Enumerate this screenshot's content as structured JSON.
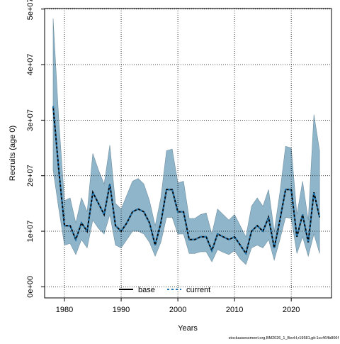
{
  "chart_data": {
    "type": "line",
    "x_label": "Years",
    "y_label": "Recruits (age 0)",
    "footer": "stockassessment.org,BM2026_1_BevH,r19581,git:1cc464b806f",
    "x": [
      1978,
      1979,
      1980,
      1981,
      1982,
      1983,
      1984,
      1985,
      1986,
      1987,
      1988,
      1989,
      1990,
      1991,
      1992,
      1993,
      1994,
      1995,
      1996,
      1997,
      1998,
      1999,
      2000,
      2001,
      2002,
      2003,
      2004,
      2005,
      2006,
      2007,
      2008,
      2009,
      2010,
      2011,
      2012,
      2013,
      2014,
      2015,
      2016,
      2017,
      2018,
      2019,
      2020,
      2021,
      2022,
      2023,
      2024,
      2025
    ],
    "series": [
      {
        "name": "base",
        "color": "#000000",
        "style": "solid",
        "values": [
          32500000.0,
          21000000.0,
          11000000.0,
          11000000.0,
          8500000.0,
          11500000.0,
          10000000.0,
          17000000.0,
          15000000.0,
          13000000.0,
          18500000.0,
          11000000.0,
          10000000.0,
          11500000.0,
          13500000.0,
          14000000.0,
          13500000.0,
          11500000.0,
          7500000.0,
          11500000.0,
          17500000.0,
          17500000.0,
          13500000.0,
          13500000.0,
          8500000.0,
          8500000.0,
          9000000.0,
          9000000.0,
          6500000.0,
          9500000.0,
          9000000.0,
          8500000.0,
          9000000.0,
          7500000.0,
          6000000.0,
          10000000.0,
          11000000.0,
          10000000.0,
          12500000.0,
          7000000.0,
          12000000.0,
          17500000.0,
          17500000.0,
          9000000.0,
          13000000.0,
          8000000.0,
          17000000.0,
          12500000.0
        ]
      },
      {
        "name": "current",
        "color": "#1f78b4",
        "style": "dashed",
        "values": [
          32500000.0,
          21000000.0,
          11000000.0,
          11000000.0,
          8500000.0,
          11500000.0,
          10000000.0,
          17000000.0,
          15000000.0,
          13000000.0,
          18500000.0,
          11000000.0,
          10000000.0,
          11500000.0,
          13500000.0,
          14000000.0,
          13500000.0,
          11500000.0,
          7500000.0,
          11500000.0,
          17500000.0,
          17500000.0,
          13500000.0,
          13500000.0,
          8500000.0,
          8500000.0,
          9000000.0,
          9000000.0,
          6500000.0,
          9500000.0,
          9000000.0,
          8500000.0,
          9000000.0,
          7500000.0,
          6000000.0,
          10000000.0,
          11000000.0,
          10000000.0,
          12500000.0,
          7000000.0,
          12000000.0,
          17500000.0,
          17500000.0,
          9000000.0,
          13000000.0,
          8000000.0,
          17000000.0,
          12500000.0
        ]
      }
    ],
    "band": {
      "color": "#8fb5ca",
      "upper": [
        48300000.0,
        30000000.0,
        15500000.0,
        16000000.0,
        11500000.0,
        16000000.0,
        13500000.0,
        24000000.0,
        21000000.0,
        18500000.0,
        25500000.0,
        15000000.0,
        14000000.0,
        16500000.0,
        19000000.0,
        19500000.0,
        18500000.0,
        15500000.0,
        11000000.0,
        16000000.0,
        24500000.0,
        24800000.0,
        18700000.0,
        19000000.0,
        12300000.0,
        12300000.0,
        13000000.0,
        13300000.0,
        9500000.0,
        14000000.0,
        13000000.0,
        12000000.0,
        13000000.0,
        11000000.0,
        9000000.0,
        14500000.0,
        16000000.0,
        14500000.0,
        17500000.0,
        10000000.0,
        17000000.0,
        25300000.0,
        25000000.0,
        13000000.0,
        19000000.0,
        12000000.0,
        31000000.0,
        24500000.0
      ],
      "lower": [
        21000000.0,
        14000000.0,
        7500000.0,
        7800000.0,
        5800000.0,
        8500000.0,
        7000000.0,
        12000000.0,
        10500000.0,
        9500000.0,
        13000000.0,
        7500000.0,
        7000000.0,
        8500000.0,
        10000000.0,
        10000000.0,
        9500000.0,
        8000000.0,
        5500000.0,
        8000000.0,
        12500000.0,
        12500000.0,
        9500000.0,
        9500000.0,
        6000000.0,
        6000000.0,
        6300000.0,
        6300000.0,
        4500000.0,
        6700000.0,
        6200000.0,
        5800000.0,
        6500000.0,
        5000000.0,
        4000000.0,
        7000000.0,
        7500000.0,
        7000000.0,
        8500000.0,
        4800000.0,
        8500000.0,
        12500000.0,
        12300000.0,
        6000000.0,
        9000000.0,
        5500000.0,
        9500000.0,
        6000000.0
      ]
    },
    "xlim": [
      1976.5,
      2027.1
    ],
    "xticks": [
      1980,
      1990,
      2000,
      2010,
      2020
    ],
    "ylim": [
      -2000000,
      50100000
    ],
    "yticks": [
      {
        "value": 0,
        "label": "0e+00"
      },
      {
        "value": 10000000,
        "label": "1e+07"
      },
      {
        "value": 20000000,
        "label": "2e+07"
      },
      {
        "value": 30000000,
        "label": "3e+07"
      },
      {
        "value": 40000000,
        "label": "4e+07"
      },
      {
        "value": 50000000,
        "label": "5e+07"
      }
    ],
    "grid": true,
    "legend": "bottom"
  }
}
